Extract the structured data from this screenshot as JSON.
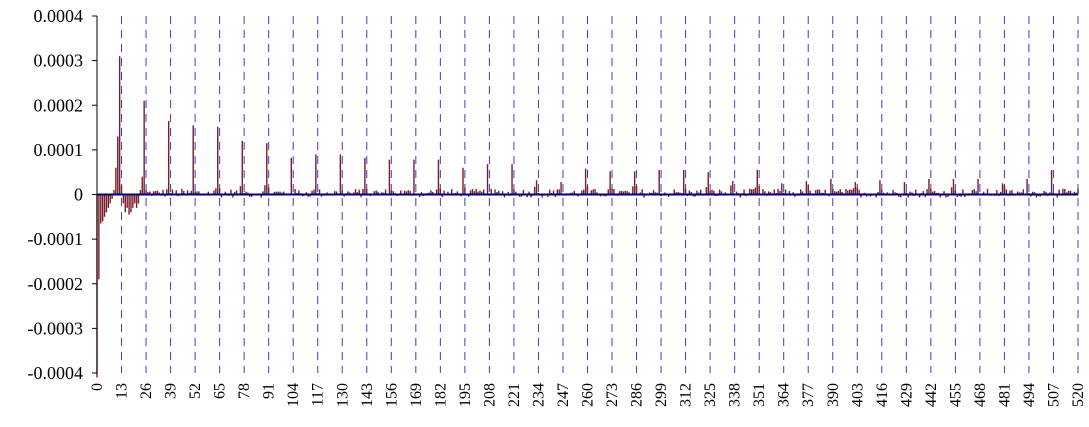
{
  "chart_data": {
    "type": "bar",
    "title": "",
    "xlabel": "",
    "ylabel": "",
    "x_range": [
      0,
      520
    ],
    "ylim": [
      -0.0004,
      0.0004
    ],
    "y_ticks": [
      0.0004,
      0.0003,
      0.0002,
      0.0001,
      0,
      -0.0001,
      -0.0002,
      -0.0003,
      -0.0004
    ],
    "y_tick_labels": [
      "0.0004",
      "0.0003",
      "0.0002",
      "0.0001",
      "0",
      "-0.0001",
      "-0.0002",
      "-0.0003",
      "-0.0004"
    ],
    "x_tick_labels": [
      "0",
      "13",
      "26",
      "39",
      "52",
      "65",
      "78",
      "91",
      "104",
      "117",
      "130",
      "143",
      "156",
      "169",
      "182",
      "195",
      "208",
      "221",
      "234",
      "247",
      "260",
      "273",
      "286",
      "299",
      "312",
      "325",
      "338",
      "351",
      "364",
      "377",
      "390",
      "403",
      "416",
      "429",
      "442",
      "455",
      "468",
      "481",
      "494",
      "507",
      "520"
    ],
    "vertical_gridlines": "dashed at every 13 lags",
    "zero_line": true,
    "colors": {
      "bar": "#7a1f2a",
      "gridline": "#3a3ad0",
      "zero_line": "#000080"
    },
    "peaks": {
      "x": [
        12,
        25,
        38,
        51,
        64,
        77,
        90,
        103,
        116,
        129,
        142,
        155,
        168,
        181,
        194,
        207,
        220,
        233,
        246,
        259,
        272,
        285,
        298,
        311,
        324,
        337,
        350,
        363,
        376,
        389,
        402,
        415,
        428,
        441,
        454,
        467,
        480,
        493,
        506
      ],
      "values": [
        0.00031,
        0.00021,
        0.000165,
        0.000155,
        0.000152,
        0.00012,
        0.000115,
        8.2e-05,
        9e-05,
        9e-05,
        8.2e-05,
        7.8e-05,
        7.8e-05,
        7.8e-05,
        6e-05,
        6.8e-05,
        6.8e-05,
        3.2e-05,
        2.8e-05,
        5.8e-05,
        5.2e-05,
        5.2e-05,
        5.5e-05,
        5.5e-05,
        5e-05,
        3e-05,
        5.5e-05,
        2.5e-05,
        3e-05,
        3.5e-05,
        2.8e-05,
        3.2e-05,
        2.8e-05,
        3.5e-05,
        3.5e-05,
        3.5e-05,
        2.5e-05,
        3.5e-05,
        5.5e-05
      ]
    },
    "early_values": {
      "x": [
        0,
        1,
        2,
        3,
        4,
        5,
        6,
        7,
        8,
        9,
        10,
        11,
        13,
        14,
        15,
        16,
        17,
        18,
        19,
        20,
        21,
        22,
        23,
        24
      ],
      "values": [
        -0.00041,
        -0.00019,
        -6.5e-05,
        -6e-05,
        -5e-05,
        -4e-05,
        -3e-05,
        -2e-05,
        -1e-05,
        1e-05,
        6e-05,
        0.00013,
        2e-05,
        -2e-05,
        -4e-05,
        -3e-05,
        -4.5e-05,
        -4e-05,
        -3e-05,
        -2e-05,
        -3e-05,
        -2e-05,
        1e-05,
        4e-05
      ]
    },
    "noise_amplitude": 2e-05
  }
}
